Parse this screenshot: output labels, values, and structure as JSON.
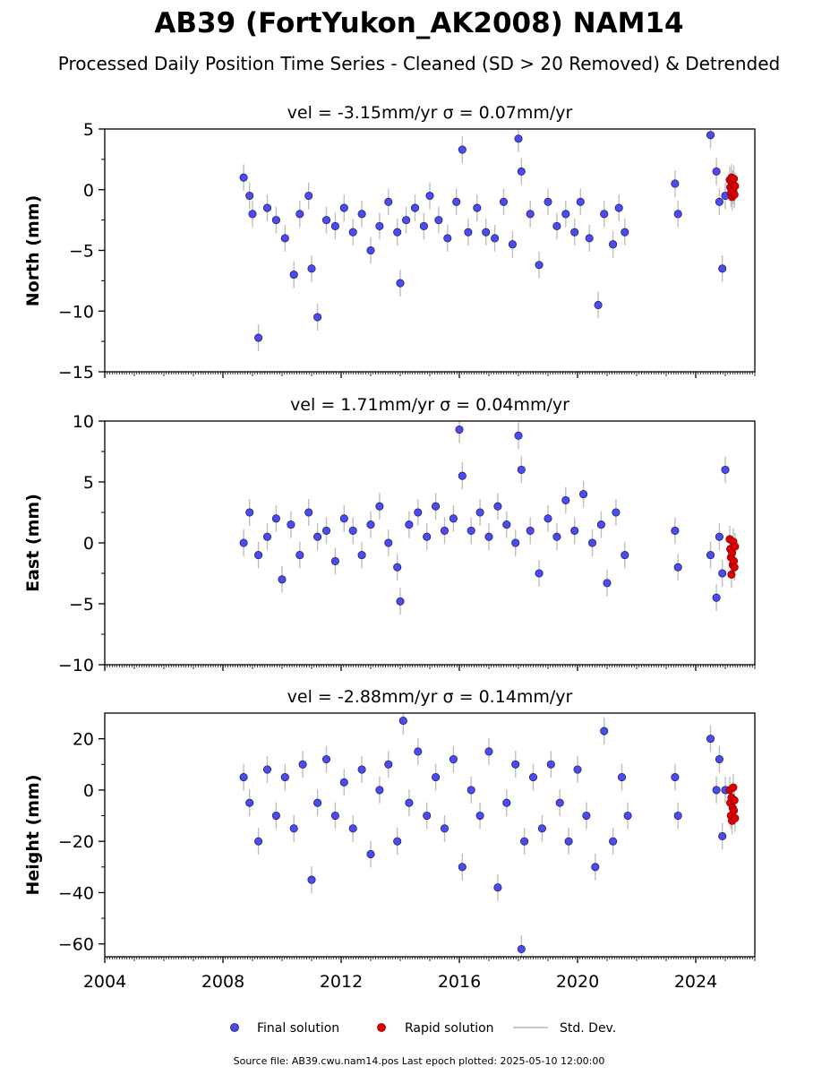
{
  "figure": {
    "title": "AB39 (FortYukon_AK2008) NAM14",
    "subtitle": "Processed Daily Position Time Series - Cleaned (SD > 20 Removed) & Detrended",
    "footer": "Source file: AB39.cwu.nam14.pos  Last epoch plotted: 2025-05-10 12:00:00"
  },
  "legend": {
    "final": "Final solution",
    "rapid": "Rapid solution",
    "std": "Std. Dev."
  },
  "colors": {
    "final": "#4b4bf0",
    "final_edge": "#1a1a55",
    "rapid": "#e00000",
    "std": "#b4b4b4",
    "axes": "#000000"
  },
  "chart_data": [
    {
      "type": "scatter",
      "title": "vel = -3.15mm/yr   σ = 0.07mm/yr",
      "ylabel": "North (mm)",
      "xlim": [
        2004,
        2026
      ],
      "ylim": [
        -15,
        5
      ],
      "yticks": [
        -15,
        -10,
        -5,
        0,
        5
      ],
      "yticklabels": [
        "−15",
        "−10",
        "−5",
        "0",
        "5"
      ],
      "series": [
        {
          "name": "Final solution",
          "x": [
            2008.7,
            2008.9,
            2009.0,
            2009.2,
            2009.5,
            2009.8,
            2010.1,
            2010.4,
            2010.6,
            2010.9,
            2011.0,
            2011.2,
            2011.5,
            2011.8,
            2012.1,
            2012.4,
            2012.7,
            2013.0,
            2013.3,
            2013.6,
            2013.9,
            2014.0,
            2014.2,
            2014.5,
            2014.8,
            2015.0,
            2015.3,
            2015.6,
            2015.9,
            2016.1,
            2016.3,
            2016.6,
            2016.9,
            2017.2,
            2017.5,
            2017.8,
            2018.0,
            2018.1,
            2018.4,
            2018.7,
            2019.0,
            2019.3,
            2019.6,
            2019.9,
            2020.1,
            2020.4,
            2020.7,
            2020.9,
            2021.2,
            2021.4,
            2021.6,
            2023.3,
            2023.4,
            2024.5,
            2024.7,
            2024.8,
            2024.9,
            2025.0
          ],
          "y": [
            1.0,
            -0.5,
            -2.0,
            -12.2,
            -1.5,
            -2.5,
            -4.0,
            -7.0,
            -2.0,
            -0.5,
            -6.5,
            -10.5,
            -2.5,
            -3.0,
            -1.5,
            -3.5,
            -2.0,
            -5.0,
            -3.0,
            -1.0,
            -3.5,
            -7.7,
            -2.5,
            -1.5,
            -3.0,
            -0.5,
            -2.5,
            -4.0,
            -1.0,
            3.3,
            -3.5,
            -1.5,
            -3.5,
            -4.0,
            -1.0,
            -4.5,
            4.2,
            1.5,
            -2.0,
            -6.2,
            -1.0,
            -3.0,
            -2.0,
            -3.5,
            -1.0,
            -4.0,
            -9.5,
            -2.0,
            -4.5,
            -1.5,
            -3.5,
            0.5,
            -2.0,
            4.5,
            1.5,
            -1.0,
            -6.5,
            -0.5
          ]
        },
        {
          "name": "Rapid solution",
          "x": [
            2025.15,
            2025.17,
            2025.19,
            2025.21,
            2025.23,
            2025.25,
            2025.27,
            2025.29,
            2025.31,
            2025.33
          ],
          "y": [
            0.8,
            0.2,
            -0.3,
            1.0,
            -0.6,
            0.5,
            -0.1,
            0.9,
            -0.4,
            0.3
          ]
        }
      ]
    },
    {
      "type": "scatter",
      "title": "vel = 1.71mm/yr   σ = 0.04mm/yr",
      "ylabel": "East (mm)",
      "xlim": [
        2004,
        2026
      ],
      "ylim": [
        -10,
        10
      ],
      "yticks": [
        -10,
        -5,
        0,
        5,
        10
      ],
      "yticklabels": [
        "−10",
        "−5",
        "0",
        "5",
        "10"
      ],
      "series": [
        {
          "name": "Final solution",
          "x": [
            2008.7,
            2008.9,
            2009.2,
            2009.5,
            2009.8,
            2010.0,
            2010.3,
            2010.6,
            2010.9,
            2011.2,
            2011.5,
            2011.8,
            2012.1,
            2012.4,
            2012.7,
            2013.0,
            2013.3,
            2013.6,
            2013.9,
            2014.0,
            2014.3,
            2014.6,
            2014.9,
            2015.2,
            2015.5,
            2015.8,
            2016.0,
            2016.1,
            2016.4,
            2016.7,
            2017.0,
            2017.3,
            2017.6,
            2017.9,
            2018.0,
            2018.1,
            2018.4,
            2018.7,
            2019.0,
            2019.3,
            2019.6,
            2019.9,
            2020.2,
            2020.5,
            2020.8,
            2021.0,
            2021.3,
            2021.6,
            2023.3,
            2023.4,
            2024.5,
            2024.7,
            2024.8,
            2024.9,
            2025.0
          ],
          "y": [
            0.0,
            2.5,
            -1.0,
            0.5,
            2.0,
            -3.0,
            1.5,
            -1.0,
            2.5,
            0.5,
            1.0,
            -1.5,
            2.0,
            1.0,
            -1.0,
            1.5,
            3.0,
            0.0,
            -2.0,
            -4.8,
            1.5,
            2.5,
            0.5,
            3.0,
            1.0,
            2.0,
            9.3,
            5.5,
            1.0,
            2.5,
            0.5,
            3.0,
            1.5,
            0.0,
            8.8,
            6.0,
            1.0,
            -2.5,
            2.0,
            0.5,
            3.5,
            1.0,
            4.0,
            0.0,
            1.5,
            -3.3,
            2.5,
            -1.0,
            1.0,
            -2.0,
            -1.0,
            -4.5,
            0.5,
            -2.5,
            6.0
          ]
        },
        {
          "name": "Rapid solution",
          "x": [
            2025.15,
            2025.17,
            2025.19,
            2025.21,
            2025.23,
            2025.25,
            2025.27,
            2025.29,
            2025.31,
            2025.33
          ],
          "y": [
            0.3,
            -0.5,
            -1.2,
            -2.6,
            -0.8,
            -1.8,
            0.1,
            -1.5,
            -2.0,
            -0.3
          ]
        }
      ]
    },
    {
      "type": "scatter",
      "title": "vel = -2.88mm/yr   σ = 0.14mm/yr",
      "ylabel": "Height (mm)",
      "xlim": [
        2004,
        2026
      ],
      "ylim": [
        -65,
        30
      ],
      "yticks": [
        -60,
        -40,
        -20,
        0,
        20
      ],
      "yticklabels": [
        "−60",
        "−40",
        "−20",
        "0",
        "20"
      ],
      "series": [
        {
          "name": "Final solution",
          "x": [
            2008.7,
            2008.9,
            2009.2,
            2009.5,
            2009.8,
            2010.1,
            2010.4,
            2010.7,
            2011.0,
            2011.2,
            2011.5,
            2011.8,
            2012.1,
            2012.4,
            2012.7,
            2013.0,
            2013.3,
            2013.6,
            2013.9,
            2014.1,
            2014.3,
            2014.6,
            2014.9,
            2015.2,
            2015.5,
            2015.8,
            2016.1,
            2016.4,
            2016.7,
            2017.0,
            2017.3,
            2017.6,
            2017.9,
            2018.1,
            2018.2,
            2018.5,
            2018.8,
            2019.1,
            2019.4,
            2019.7,
            2020.0,
            2020.3,
            2020.6,
            2020.9,
            2021.2,
            2021.5,
            2021.7,
            2023.3,
            2023.4,
            2024.5,
            2024.7,
            2024.8,
            2024.9,
            2025.0
          ],
          "y": [
            5.0,
            -5.0,
            -20.0,
            8.0,
            -10.0,
            5.0,
            -15.0,
            10.0,
            -35.0,
            -5.0,
            12.0,
            -10.0,
            3.0,
            -15.0,
            8.0,
            -25.0,
            0.0,
            10.0,
            -20.0,
            27.0,
            -5.0,
            15.0,
            -10.0,
            5.0,
            -15.0,
            12.0,
            -30.0,
            0.0,
            -10.0,
            15.0,
            -38.0,
            -5.0,
            10.0,
            -62.0,
            -20.0,
            5.0,
            -15.0,
            10.0,
            -5.0,
            -20.0,
            8.0,
            -10.0,
            -30.0,
            23.0,
            -20.0,
            5.0,
            -10.0,
            5.0,
            -10.0,
            20.0,
            0.0,
            12.0,
            -18.0,
            0.0
          ]
        },
        {
          "name": "Rapid solution",
          "x": [
            2025.15,
            2025.17,
            2025.19,
            2025.21,
            2025.23,
            2025.25,
            2025.27,
            2025.29,
            2025.31,
            2025.33
          ],
          "y": [
            0.0,
            -5.0,
            -10.0,
            -3.0,
            -12.0,
            -7.0,
            1.0,
            -8.0,
            -4.0,
            -11.0
          ]
        }
      ]
    }
  ],
  "xaxis": {
    "ticks": [
      2004,
      2008,
      2012,
      2016,
      2020,
      2024
    ],
    "ticklabels": [
      "2004",
      "2008",
      "2012",
      "2016",
      "2020",
      "2024"
    ]
  }
}
